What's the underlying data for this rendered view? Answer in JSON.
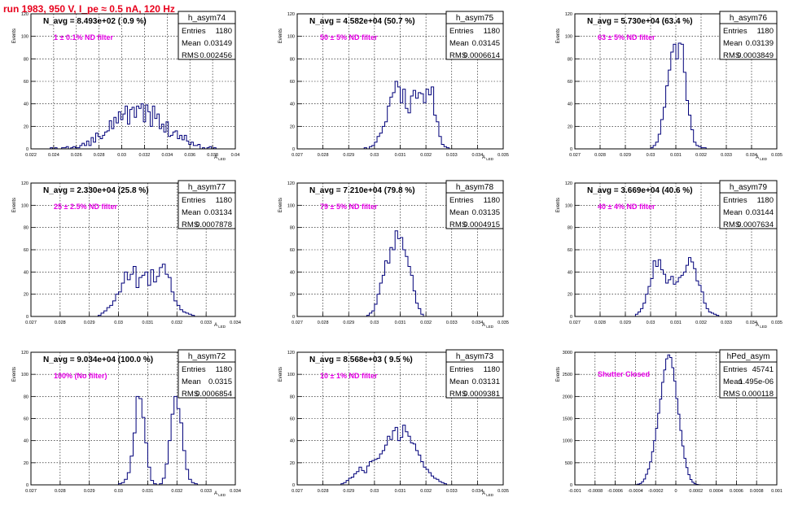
{
  "run_title": "run 1983,   950 V, I_pe ≈ 0.5 nA, 120 Hz",
  "stats_labels": {
    "entries": "Entries",
    "mean": "Mean",
    "rms": "RMS"
  },
  "colors": {
    "title": "#e8001c",
    "hist": "#00007a",
    "annotation": "#e600e6",
    "grid": "#000000",
    "frame": "#000000"
  },
  "chart_data": [
    {
      "type": "histogram",
      "name": "h_asym74",
      "ylabel": "Events",
      "xlabel": "A_LED",
      "xlim": [
        0.022,
        0.04
      ],
      "ylim": [
        0,
        120
      ],
      "x_ticks": [
        "0.022",
        "0.024",
        "0.026",
        "0.028",
        "0.03",
        "0.032",
        "0.034",
        "0.036",
        "0.038",
        "0.04"
      ],
      "y_ticks": [
        "0",
        "20",
        "40",
        "60",
        "80",
        "100",
        "120"
      ],
      "grid": true,
      "n_avg_label": "N_avg = 8.493e+02 ( 0.9 %)",
      "filter_label": "1 ± 0.1% ND filter",
      "stats": {
        "entries": "1180",
        "mean": "0.03149",
        "rms": "0.002456"
      },
      "bin_start": 0.0235,
      "bin_width": 0.0002,
      "counts": [
        0,
        1,
        0,
        1,
        0,
        0,
        1,
        1,
        2,
        0,
        1,
        2,
        1,
        1,
        3,
        5,
        3,
        7,
        3,
        10,
        6,
        14,
        11,
        9,
        12,
        15,
        16,
        25,
        18,
        28,
        23,
        33,
        26,
        31,
        38,
        22,
        35,
        37,
        28,
        38,
        36,
        40,
        24,
        39,
        33,
        20,
        38,
        27,
        31,
        18,
        22,
        15,
        24,
        11,
        12,
        15,
        16,
        9,
        12,
        8,
        12,
        7,
        4,
        6,
        3,
        3,
        4,
        0,
        1,
        0,
        1,
        2,
        0,
        1,
        0
      ]
    },
    {
      "type": "histogram",
      "name": "h_asym75",
      "ylabel": "Events",
      "xlabel": "A_LED",
      "xlim": [
        0.027,
        0.035
      ],
      "ylim": [
        0,
        120
      ],
      "x_ticks": [
        "0.027",
        "0.028",
        "0.029",
        "0.03",
        "0.031",
        "0.032",
        "0.033",
        "0.034",
        "0.035"
      ],
      "y_ticks": [
        "0",
        "20",
        "40",
        "60",
        "80",
        "100",
        "120"
      ],
      "grid": true,
      "n_avg_label": "N_avg = 4.582e+04 (50.7 %)",
      "filter_label": "50 ± 5% ND filter",
      "stats": {
        "entries": "1180",
        "mean": "0.03145",
        "rms": "0.0006614"
      },
      "bin_start": 0.0296,
      "bin_width": 0.0001,
      "counts": [
        1,
        0,
        2,
        3,
        6,
        11,
        14,
        20,
        24,
        38,
        46,
        50,
        60,
        55,
        41,
        53,
        36,
        32,
        47,
        52,
        45,
        50,
        49,
        41,
        53,
        48,
        55,
        30,
        24,
        11,
        4,
        2,
        1,
        0
      ]
    },
    {
      "type": "histogram",
      "name": "h_asym76",
      "ylabel": "Events",
      "xlabel": "A_LED",
      "xlim": [
        0.027,
        0.035
      ],
      "ylim": [
        0,
        120
      ],
      "x_ticks": [
        "0.027",
        "0.028",
        "0.029",
        "0.03",
        "0.031",
        "0.032",
        "0.033",
        "0.034",
        "0.035"
      ],
      "y_ticks": [
        "0",
        "20",
        "40",
        "60",
        "80",
        "100",
        "120"
      ],
      "grid": true,
      "n_avg_label": "N_avg = 5.730e+04 (63.4 %)",
      "filter_label": "63 ± 5% ND filter",
      "stats": {
        "entries": "1180",
        "mean": "0.03139",
        "rms": "0.0003849"
      },
      "bin_start": 0.03,
      "bin_width": 0.0001,
      "counts": [
        1,
        3,
        6,
        13,
        26,
        37,
        56,
        70,
        86,
        93,
        80,
        94,
        93,
        68,
        43,
        30,
        17,
        6,
        3,
        2,
        1,
        1,
        0
      ]
    },
    {
      "type": "histogram",
      "name": "h_asym77",
      "ylabel": "Events",
      "xlabel": "A_LED",
      "xlim": [
        0.027,
        0.034
      ],
      "ylim": [
        0,
        120
      ],
      "x_ticks": [
        "0.027",
        "0.028",
        "0.029",
        "0.03",
        "0.031",
        "0.032",
        "0.033",
        "0.034"
      ],
      "y_ticks": [
        "0",
        "20",
        "40",
        "60",
        "80",
        "100",
        "120"
      ],
      "grid": true,
      "n_avg_label": "N_avg = 2.330e+04 (25.8 %)",
      "filter_label": "25 ± 2.5% ND filter",
      "stats": {
        "entries": "1180",
        "mean": "0.03134",
        "rms": "0.0007878"
      },
      "bin_start": 0.0293,
      "bin_width": 0.0001,
      "counts": [
        1,
        3,
        5,
        8,
        10,
        14,
        20,
        22,
        30,
        40,
        33,
        38,
        45,
        26,
        35,
        37,
        40,
        28,
        42,
        31,
        36,
        44,
        47,
        38,
        35,
        22,
        14,
        10,
        6,
        4,
        3,
        2,
        1,
        0
      ]
    },
    {
      "type": "histogram",
      "name": "h_asym78",
      "ylabel": "Events",
      "xlabel": "A_LED",
      "xlim": [
        0.027,
        0.035
      ],
      "ylim": [
        0,
        120
      ],
      "x_ticks": [
        "0.027",
        "0.028",
        "0.029",
        "0.03",
        "0.031",
        "0.032",
        "0.033",
        "0.034",
        "0.035"
      ],
      "y_ticks": [
        "0",
        "20",
        "40",
        "60",
        "80",
        "100",
        "120"
      ],
      "grid": true,
      "n_avg_label": "N_avg = 7.210e+04 (79.8 %)",
      "filter_label": "79 ± 5% ND filter",
      "stats": {
        "entries": "1180",
        "mean": "0.03135",
        "rms": "0.0004915"
      },
      "bin_start": 0.0297,
      "bin_width": 0.0001,
      "counts": [
        1,
        3,
        5,
        11,
        20,
        30,
        37,
        50,
        48,
        62,
        60,
        77,
        70,
        71,
        60,
        54,
        45,
        37,
        23,
        12,
        7,
        2,
        0
      ]
    },
    {
      "type": "histogram",
      "name": "h_asym79",
      "ylabel": "Events",
      "xlabel": "A_LED",
      "xlim": [
        0.027,
        0.035
      ],
      "ylim": [
        0,
        120
      ],
      "x_ticks": [
        "0.027",
        "0.028",
        "0.029",
        "0.03",
        "0.031",
        "0.032",
        "0.033",
        "0.034",
        "0.035"
      ],
      "y_ticks": [
        "0",
        "20",
        "40",
        "60",
        "80",
        "100",
        "120"
      ],
      "grid": true,
      "n_avg_label": "N_avg = 3.669e+04 (40.6 %)",
      "filter_label": "40 ± 4% ND filter",
      "stats": {
        "entries": "1180",
        "mean": "0.03144",
        "rms": "0.0007634"
      },
      "bin_start": 0.0294,
      "bin_width": 0.0001,
      "counts": [
        2,
        4,
        7,
        12,
        20,
        27,
        34,
        50,
        45,
        51,
        42,
        38,
        30,
        33,
        36,
        29,
        31,
        35,
        37,
        40,
        46,
        53,
        49,
        43,
        32,
        28,
        22,
        12,
        7,
        4,
        3,
        2,
        1,
        0
      ]
    },
    {
      "type": "histogram",
      "name": "h_asym72",
      "ylabel": "Events",
      "xlabel": "A_LED",
      "xlim": [
        0.027,
        0.034
      ],
      "ylim": [
        0,
        120
      ],
      "x_ticks": [
        "0.027",
        "0.028",
        "0.029",
        "0.03",
        "0.031",
        "0.032",
        "0.033",
        "0.034"
      ],
      "y_ticks": [
        "0",
        "20",
        "40",
        "60",
        "80",
        "100",
        "120"
      ],
      "grid": true,
      "n_avg_label": "N_avg = 9.034e+04 (100.0 %)",
      "filter_label": "100% (No filter)",
      "stats": {
        "entries": "1180",
        "mean": "0.0315",
        "rms": "0.0006854"
      },
      "bin_start": 0.03,
      "bin_width": 0.0001,
      "counts": [
        1,
        2,
        5,
        11,
        26,
        47,
        80,
        78,
        61,
        38,
        16,
        4,
        1,
        0,
        1,
        6,
        19,
        40,
        64,
        80,
        69,
        56,
        31,
        14,
        5,
        2,
        1,
        0
      ]
    },
    {
      "type": "histogram",
      "name": "h_asym73",
      "ylabel": "Events",
      "xlabel": "A_LED",
      "xlim": [
        0.027,
        0.035
      ],
      "ylim": [
        0,
        120
      ],
      "x_ticks": [
        "0.027",
        "0.028",
        "0.029",
        "0.03",
        "0.031",
        "0.032",
        "0.033",
        "0.034",
        "0.035"
      ],
      "y_ticks": [
        "0",
        "20",
        "40",
        "60",
        "80",
        "100",
        "120"
      ],
      "grid": true,
      "n_avg_label": "N_avg = 8.568e+03 ( 9.5 %)",
      "filter_label": "10 ± 1% ND filter",
      "stats": {
        "entries": "1180",
        "mean": "0.03131",
        "rms": "0.0009381"
      },
      "bin_start": 0.0286,
      "bin_width": 0.0001,
      "counts": [
        0,
        1,
        2,
        4,
        6,
        7,
        10,
        12,
        16,
        13,
        11,
        17,
        21,
        22,
        23,
        24,
        28,
        31,
        36,
        44,
        41,
        49,
        52,
        40,
        43,
        54,
        48,
        44,
        38,
        37,
        31,
        27,
        21,
        16,
        14,
        11,
        8,
        6,
        5,
        3,
        2,
        1,
        0
      ]
    },
    {
      "type": "histogram",
      "name": "hPed_asym",
      "ylabel": "Events",
      "xlabel": "",
      "xlim": [
        -0.001,
        0.001
      ],
      "ylim": [
        0,
        3000
      ],
      "x_ticks": [
        "-0.001",
        "-0.0008",
        "-0.0006",
        "-0.0004",
        "-0.0002",
        "0",
        "0.0002",
        "0.0004",
        "0.0006",
        "0.0008",
        "0.001"
      ],
      "y_ticks": [
        "0",
        "500",
        "1000",
        "1500",
        "2000",
        "2500",
        "3000"
      ],
      "grid": true,
      "n_avg_label": "",
      "filter_label": "Shutter Closed",
      "stats": {
        "entries": "45741",
        "mean": "1.495e-06",
        "rms": "0.000118"
      },
      "bin_start": -0.0004,
      "bin_width": 2e-05,
      "counts": [
        5,
        15,
        30,
        70,
        130,
        240,
        360,
        520,
        750,
        1000,
        1280,
        1620,
        1940,
        2320,
        2600,
        2850,
        2940,
        2880,
        2650,
        2350,
        1950,
        1600,
        1230,
        880,
        600,
        390,
        230,
        120,
        60,
        25,
        10,
        3
      ]
    }
  ]
}
